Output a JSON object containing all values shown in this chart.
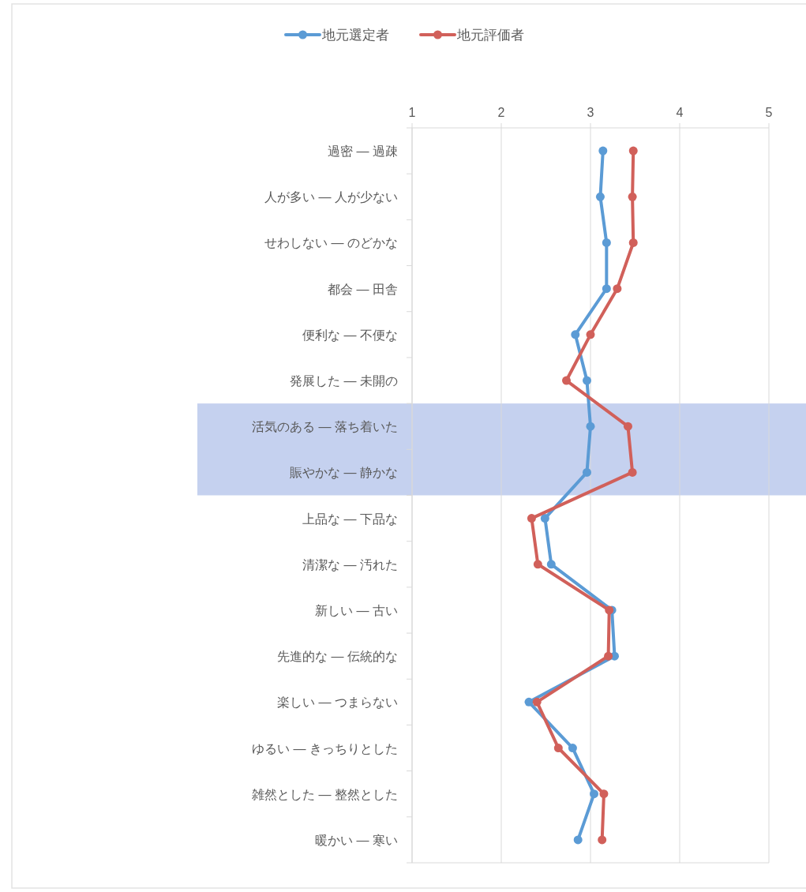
{
  "chart_data": {
    "type": "line",
    "orientation": "horizontal",
    "categories": [
      "過密 — 過疎",
      "人が多い — 人が少ない",
      "せわしない — のどかな",
      "都会 — 田舎",
      "便利な — 不便な",
      "発展した — 未開の",
      "活気のある — 落ち着いた",
      "賑やかな — 静かな",
      "上品な — 下品な",
      "清潔な — 汚れた",
      "新しい — 古い",
      "先進的な — 伝統的な",
      "楽しい — つまらない",
      "ゆるい — きっちりとした",
      "雑然とした — 整然とした",
      "暖かい — 寒い"
    ],
    "xlim": [
      1,
      5
    ],
    "xticks": [
      1,
      2,
      3,
      4,
      5
    ],
    "grid": "x",
    "legend": "top",
    "marker": "circle",
    "line_style": "solid",
    "bands": [
      {
        "axis": "y",
        "from": "活気のある — 落ち着いた",
        "to": "賑やかな — 静かな",
        "color": "#c5d1ef"
      }
    ],
    "series": [
      {
        "name": "地元選定者",
        "color": "#5b9bd5",
        "values": [
          3.14,
          3.11,
          3.18,
          3.18,
          2.83,
          2.96,
          3.0,
          2.96,
          2.49,
          2.56,
          3.24,
          3.27,
          2.31,
          2.8,
          3.04,
          2.86
        ]
      },
      {
        "name": "地元評価者",
        "color": "#d1605a",
        "values": [
          3.48,
          3.47,
          3.48,
          3.3,
          3.0,
          2.73,
          3.42,
          3.47,
          2.34,
          2.41,
          3.21,
          3.2,
          2.4,
          2.64,
          3.15,
          3.13
        ]
      }
    ]
  }
}
